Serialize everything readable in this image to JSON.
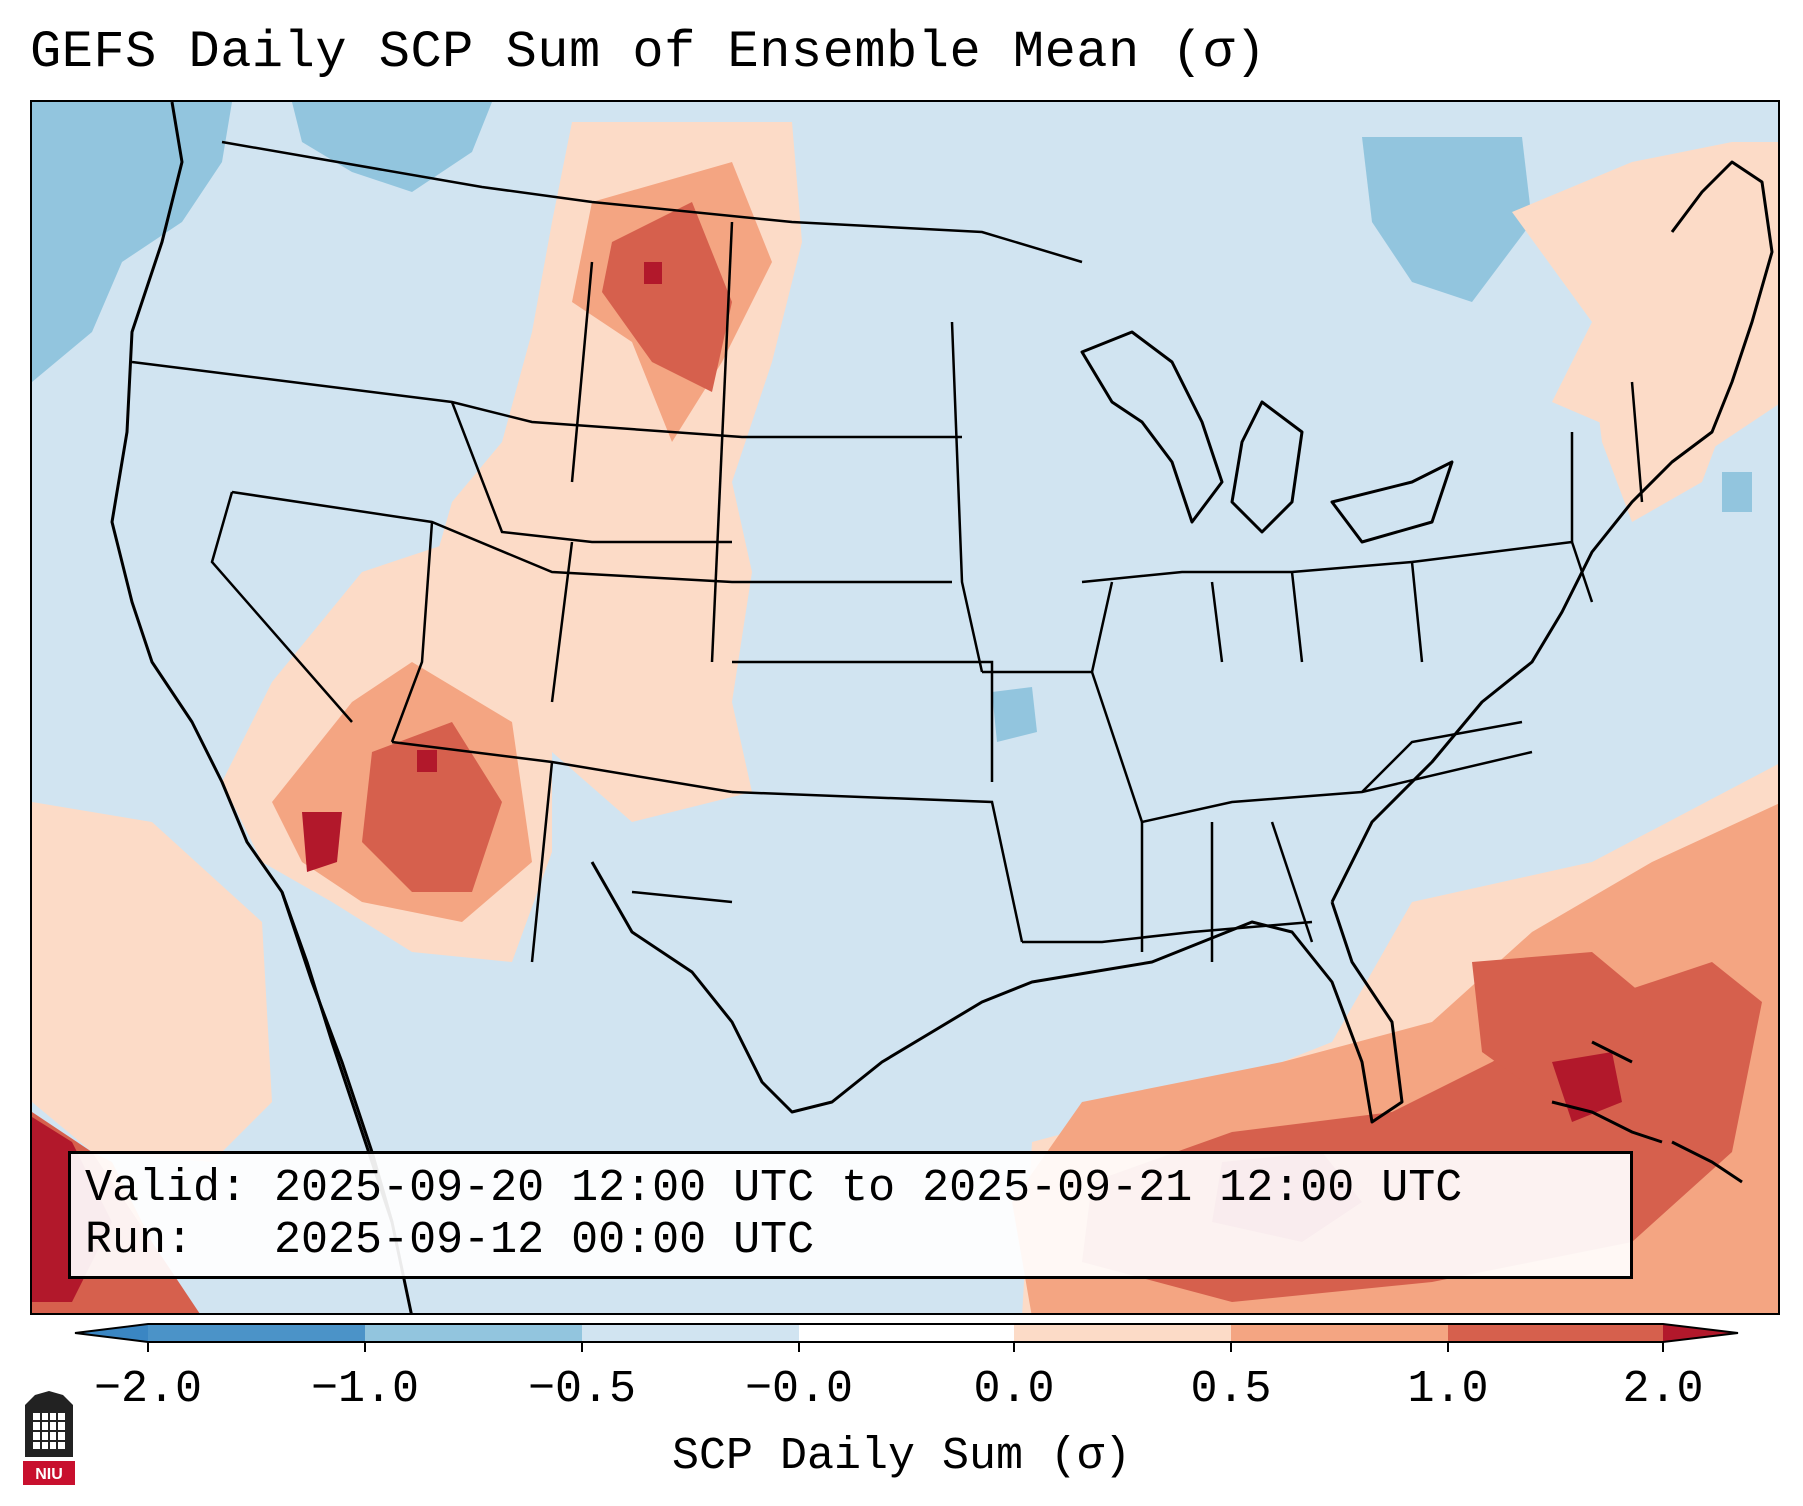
{
  "title": "GEFS Daily SCP Sum of Ensemble Mean (σ)",
  "info": {
    "valid_label": "Valid:",
    "valid_value": "2025-09-20 12:00 UTC to 2025-09-21 12:00 UTC",
    "run_label": "Run:",
    "run_value": "2025-09-12 00:00 UTC"
  },
  "colorbar": {
    "label": "SCP Daily Sum (σ)",
    "ticks": [
      "−2.0",
      "−1.0",
      "−0.5",
      "−0.0",
      "0.0",
      "0.5",
      "1.0",
      "2.0"
    ],
    "colors": {
      "below_min": "#3a86c3",
      "bin_neg2_neg1": "#4b93c8",
      "bin_neg1_neg05": "#92c5de",
      "bin_neg05_0": "#d1e4f1",
      "bin_0_0": "#ffffff",
      "bin_0_05": "#fcdbc7",
      "bin_05_1": "#f4a582",
      "bin_1_2": "#d6604d",
      "above_max": "#b2182b"
    }
  },
  "logo": {
    "text": "NIU",
    "color": "#c8102e"
  }
}
